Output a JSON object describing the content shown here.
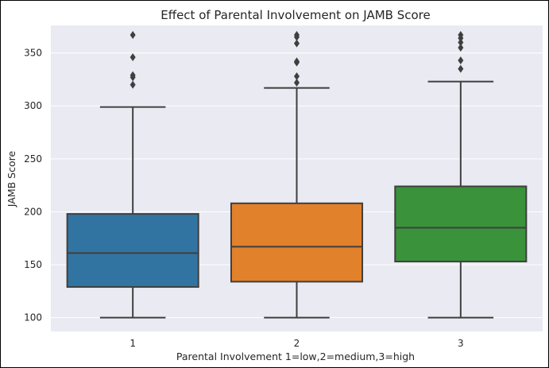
{
  "chart_data": {
    "type": "box",
    "title": "Effect of Parental Involvement on JAMB Score",
    "xlabel": "Parental Involvement  1=low,2=medium,3=high",
    "ylabel": "JAMB Score",
    "ylim": [
      87,
      376
    ],
    "yticks": [
      100,
      150,
      200,
      250,
      300,
      350
    ],
    "grid": true,
    "categories": [
      "1",
      "2",
      "3"
    ],
    "colors": [
      "#3274a1",
      "#e1812c",
      "#3a923a"
    ],
    "edge_color": "#3f3f3f",
    "background_color": "#eaeaf2",
    "boxes": [
      {
        "category": "1",
        "whisker_low": 100,
        "q1": 129,
        "median": 161,
        "q3": 198,
        "whisker_high": 299,
        "outliers": [
          320,
          327,
          329,
          346,
          367
        ]
      },
      {
        "category": "2",
        "whisker_low": 100,
        "q1": 134,
        "median": 167,
        "q3": 208,
        "whisker_high": 317,
        "outliers": [
          322,
          328,
          341,
          342,
          359,
          365,
          367
        ]
      },
      {
        "category": "3",
        "whisker_low": 100,
        "q1": 153,
        "median": 185,
        "q3": 224,
        "whisker_high": 323,
        "outliers": [
          335,
          343,
          355,
          360,
          364,
          367
        ]
      }
    ]
  }
}
